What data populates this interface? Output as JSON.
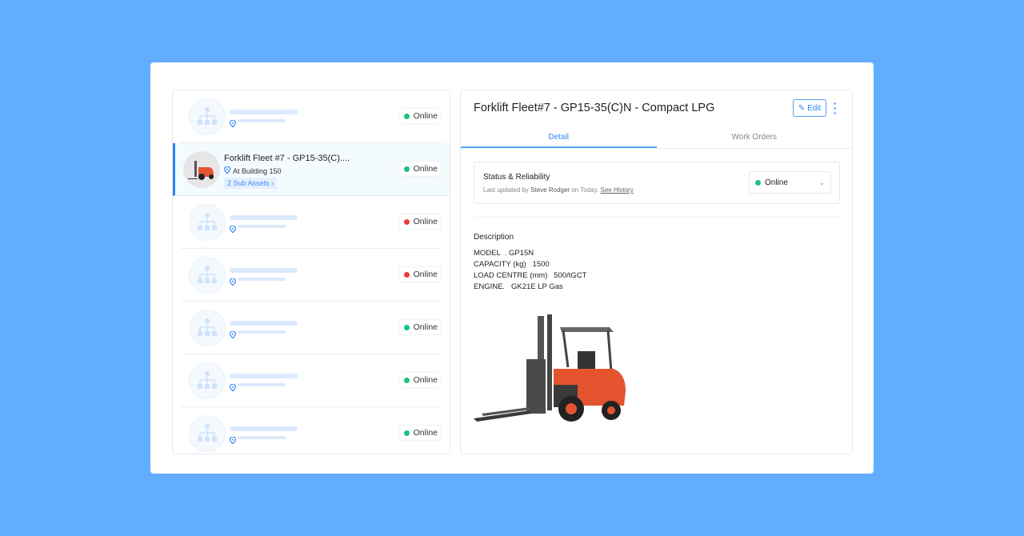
{
  "list": {
    "items": [
      {
        "status": "Online",
        "color": "#17c47a",
        "placeholder": true
      },
      {
        "name": "Forklift Fleet #7 - GP15-35(C)....",
        "location": "At Building 150",
        "sub_assets": "2 Sub Assets",
        "status": "Online",
        "color": "#17c47a",
        "selected": true
      },
      {
        "status": "Online",
        "color": "#ef3b3b",
        "placeholder": true
      },
      {
        "status": "Online",
        "color": "#ef3b3b",
        "placeholder": true
      },
      {
        "status": "Online",
        "color": "#17c47a",
        "placeholder": true
      },
      {
        "status": "Online",
        "color": "#17c47a",
        "placeholder": true
      },
      {
        "status": "Online",
        "color": "#17c47a",
        "placeholder": true
      }
    ]
  },
  "detail": {
    "title": "Forklift Fleet#7 - GP15-35(C)N - Compact LPG",
    "edit_label": "Edit",
    "tabs": [
      {
        "label": "Detail",
        "active": true
      },
      {
        "label": "Work Orders"
      }
    ],
    "status_card": {
      "title": "Status & Reliability",
      "updated_prefix": "Last updated by ",
      "updated_by": "Steve Rodger",
      "updated_suffix": " on Today. ",
      "history_link": "See History",
      "value": "Online",
      "color": "#17c47a"
    },
    "description_title": "Description",
    "description": [
      "MODEL  . GP15N",
      "CAPACITY (kg)   1500",
      "LOAD CENTRE (mm)   500/tGCT",
      "ENGINE.   GK21E LP Gas"
    ]
  },
  "colors": {
    "background": "#62adfc",
    "accent": "#2f86f6"
  }
}
